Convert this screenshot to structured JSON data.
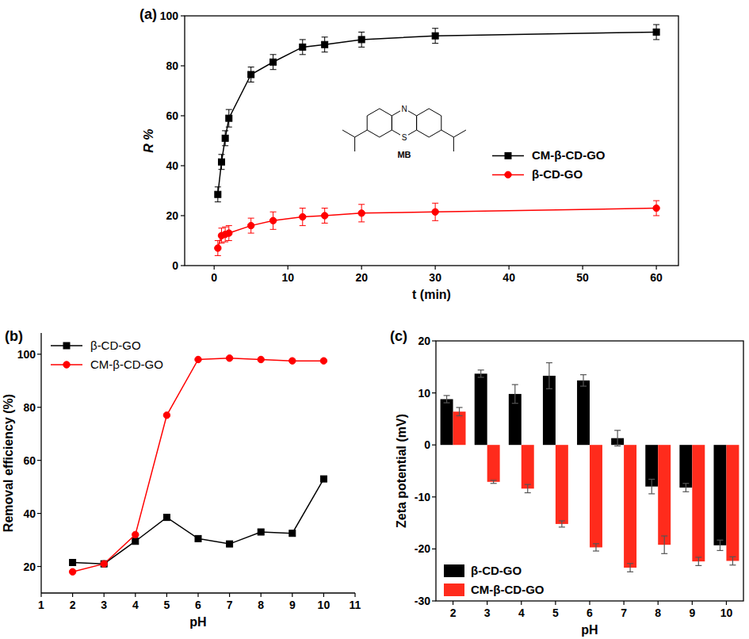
{
  "chart_data": [
    {
      "type": "line",
      "panel_label": "(a)",
      "x_label": "t (min)",
      "y_label": "R %",
      "annotations": [
        "MB",
        "N",
        "S"
      ],
      "x": [
        0.5,
        1,
        1.5,
        2,
        5,
        8,
        12,
        15,
        20,
        30,
        60
      ],
      "series": [
        {
          "name": "CM-β-CD-GO",
          "color": "#000000",
          "marker": "square",
          "line_style": "solid",
          "values": [
            28.5,
            41.5,
            51,
            59,
            76.5,
            81.5,
            87.5,
            88.5,
            90.5,
            92,
            93.5
          ],
          "errors": [
            3,
            3,
            3,
            3.5,
            3,
            3,
            3,
            3,
            3,
            3,
            3
          ]
        },
        {
          "name": "β-CD-GO",
          "color": "#ff0000",
          "marker": "circle",
          "line_style": "solid",
          "values": [
            7,
            12,
            12.5,
            13,
            16,
            18,
            19.5,
            20,
            21,
            21.5,
            23
          ],
          "errors": [
            3,
            3,
            3,
            3,
            3,
            3.5,
            3.5,
            3,
            3.5,
            3.5,
            3
          ]
        }
      ],
      "xlim": [
        -4,
        63
      ],
      "xticks": [
        0,
        10,
        20,
        30,
        40,
        50,
        60
      ],
      "ylim": [
        0,
        100
      ],
      "yticks": [
        0,
        20,
        40,
        60,
        80,
        100
      ],
      "grid": false,
      "legend": "right"
    },
    {
      "type": "line",
      "panel_label": "(b)",
      "x_label": "pH",
      "y_label": "Removal efficiency (%)",
      "x": [
        2,
        3,
        4,
        5,
        6,
        7,
        8,
        9,
        10
      ],
      "series": [
        {
          "name": "β-CD-GO",
          "color": "#000000",
          "marker": "square",
          "line_style": "solid",
          "values": [
            21.5,
            21,
            29.5,
            38.5,
            30.5,
            28.5,
            33,
            32.5,
            53
          ]
        },
        {
          "name": "CM-β-CD-GO",
          "color": "#ff0000",
          "marker": "circle",
          "line_style": "solid",
          "values": [
            18,
            21,
            32,
            77,
            98,
            98.5,
            98,
            97.5,
            97.5
          ]
        }
      ],
      "xlim": [
        1,
        11
      ],
      "xticks": [
        1,
        2,
        3,
        4,
        5,
        6,
        7,
        8,
        9,
        10,
        11
      ],
      "ylim": [
        10,
        108
      ],
      "yticks": [
        20,
        40,
        60,
        80,
        100
      ],
      "grid": false,
      "legend": "upper left"
    },
    {
      "type": "bar",
      "panel_label": "(c)",
      "x_label": "pH",
      "y_label": "Zeta potential (mV)",
      "categories": [
        "2",
        "3",
        "4",
        "5",
        "6",
        "7",
        "8",
        "9",
        "10"
      ],
      "series": [
        {
          "name": "β-CD-GO",
          "color": "#000000",
          "values": [
            8.8,
            13.7,
            9.8,
            13.3,
            12.4,
            1.3,
            -8,
            -8.2,
            -19.3
          ],
          "errors": [
            0.7,
            0.7,
            1.8,
            2.5,
            1.1,
            1.5,
            1.4,
            0.8,
            1.0
          ]
        },
        {
          "name": "CM-β-CD-GO",
          "color": "#ff2b1c",
          "values": [
            6.4,
            -7.1,
            -8.4,
            -15.2,
            -19.7,
            -23.6,
            -19.2,
            -22.4,
            -22.3
          ],
          "errors": [
            0.8,
            0.3,
            0.8,
            0.6,
            0.7,
            0.8,
            1.7,
            0.8,
            0.8
          ]
        }
      ],
      "ylim": [
        -30,
        20
      ],
      "yticks": [
        -30,
        -20,
        -10,
        0,
        10,
        20
      ],
      "grid": false,
      "legend": "lower left"
    }
  ]
}
